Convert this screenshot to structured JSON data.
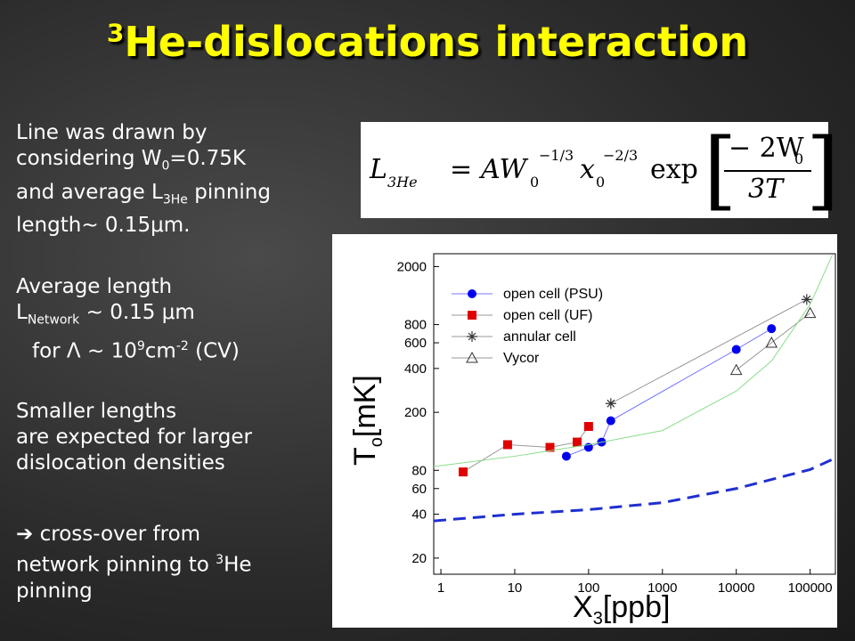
{
  "slide": {
    "title_sup": "3",
    "title": "He-dislocations interaction",
    "p1": {
      "l1": "Line was drawn by",
      "l2a": "considering W",
      "l2b": "0",
      "l2c": "=0.75K",
      "l3a": "and average L",
      "l3b": "3He",
      "l3c": " pinning",
      "l4": "length~ 0.15μm."
    },
    "p2": {
      "l1": "Average length",
      "l2a": "L",
      "l2b": "Network",
      "l2c": " ~ 0.15 μm",
      "l3a": "for Λ ~  10",
      "l3b": "9",
      "l3c": "cm",
      "l3d": "-2",
      "l3e": " (CV)"
    },
    "p3": {
      "l1": "Smaller lengths",
      "l2": "are expected for larger",
      "l3": "dislocation densities"
    },
    "p4": {
      "l1": " cross-over from",
      "l2a": "network pinning to ",
      "l2b": "3",
      "l2c": "He",
      "l3": "pinning"
    },
    "formula": {
      "lhs": "L",
      "lhs_sub": "3He",
      "eq": "=",
      "a": "AW",
      "a_sub": "0",
      "a_sup": "−1/3",
      "x": "x",
      "x_sub": "0",
      "x_sup": "−2/3",
      "exp": "exp",
      "num": "− 2W",
      "num_sub": "0",
      "den": "3T"
    }
  },
  "chart_data": {
    "type": "scatter",
    "log_x": true,
    "log_y": true,
    "x_label": "X",
    "x_label_sub": "3",
    "x_label_unit": "[ppb]",
    "y_label": "T",
    "y_label_sub": "o",
    "y_label_unit": "[mK]",
    "xlim": [
      0.8,
      220000
    ],
    "ylim": [
      15.5,
      2450
    ],
    "xticks": [
      1,
      10,
      100,
      1000,
      10000,
      100000
    ],
    "yticks": [
      20,
      40,
      60,
      80,
      200,
      400,
      600,
      800,
      2000
    ],
    "legend": "upper left",
    "series": [
      {
        "name": "open cell (PSU)",
        "color": "#0000ee",
        "marker": "circle",
        "x": [
          50,
          100,
          150,
          200,
          10000,
          30000
        ],
        "values": [
          100,
          115,
          125,
          175,
          540,
          750
        ]
      },
      {
        "name": "open cell (UF)",
        "color": "#e00000",
        "marker": "square",
        "x": [
          2,
          8,
          30,
          70,
          100
        ],
        "values": [
          78,
          120,
          115,
          125,
          160
        ]
      },
      {
        "name": "annular cell",
        "color": "#333333",
        "marker": "star",
        "x": [
          200,
          90000
        ],
        "values": [
          230,
          1190
        ]
      },
      {
        "name": "Vycor",
        "color": "#333333",
        "marker": "triangle",
        "x": [
          10000,
          30000,
          100000
        ],
        "values": [
          390,
          600,
          960
        ]
      },
      {
        "color": "#88dd88",
        "marker": "none",
        "x": [
          0.8,
          10,
          100,
          1000,
          10000,
          30000,
          100000,
          200000
        ],
        "values": [
          85,
          100,
          120,
          150,
          280,
          450,
          1100,
          2400
        ]
      },
      {
        "color": "#1f2fd0",
        "marker": "none",
        "dash": true,
        "x": [
          0.8,
          10,
          100,
          1000,
          10000,
          100000,
          200000
        ],
        "values": [
          36,
          40,
          43,
          48,
          60,
          81,
          95
        ]
      }
    ]
  }
}
